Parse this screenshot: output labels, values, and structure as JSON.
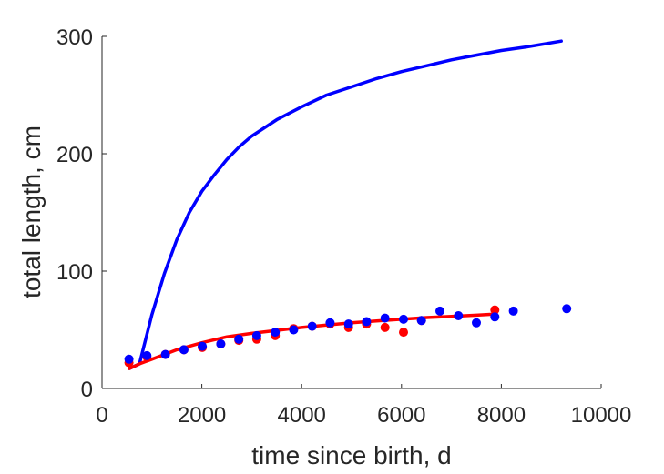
{
  "chart_data": {
    "type": "scatter",
    "title": "",
    "xlabel": "time since birth, d",
    "ylabel": "total length, cm",
    "xlim": [
      0,
      10000
    ],
    "ylim": [
      0,
      300
    ],
    "xticks": [
      0,
      2000,
      4000,
      6000,
      8000,
      10000
    ],
    "yticks": [
      0,
      100,
      200,
      300
    ],
    "grid": false,
    "colors": {
      "red": "#ff0000",
      "blue": "#0000ff",
      "axis": "#262626"
    },
    "series": [
      {
        "kind": "line",
        "color": "#0000ff",
        "x": [
          550,
          650,
          750,
          1000,
          1250,
          1500,
          1750,
          2000,
          2250,
          2500,
          2750,
          3000,
          3250,
          3500,
          4000,
          4500,
          5000,
          5500,
          6000,
          6500,
          7000,
          7500,
          8000,
          8500,
          9200
        ],
        "y": [
          17,
          19,
          21,
          63,
          98,
          127,
          150,
          168,
          182,
          195,
          206,
          215,
          222,
          229,
          240,
          250,
          257,
          264,
          270,
          275,
          280,
          284,
          288,
          291,
          296
        ]
      },
      {
        "kind": "line",
        "color": "#ff0000",
        "x": [
          550,
          750,
          1000,
          1250,
          1500,
          2000,
          2500,
          3000,
          3500,
          4000,
          4500,
          5000,
          5500,
          6000,
          6500,
          7000,
          7500,
          7900
        ],
        "y": [
          17,
          21,
          25,
          29,
          33,
          39,
          44,
          47,
          49.5,
          52,
          54,
          56,
          57.5,
          59,
          60.5,
          61.5,
          62.5,
          63.5
        ]
      },
      {
        "kind": "points",
        "color": "#ff0000",
        "x": [
          540,
          900,
          1270,
          1640,
          2010,
          2380,
          2740,
          3100,
          3470,
          3840,
          4210,
          4570,
          4940,
          5300,
          5670,
          6040,
          6400,
          7870
        ],
        "y": [
          22,
          27,
          29,
          33,
          35,
          38,
          41,
          42,
          45,
          51,
          53,
          55,
          52,
          55,
          52,
          48,
          58,
          67
        ]
      },
      {
        "kind": "points",
        "color": "#0000ff",
        "x": [
          540,
          900,
          1270,
          1640,
          2010,
          2380,
          2740,
          3100,
          3470,
          3840,
          4210,
          4570,
          4940,
          5300,
          5670,
          6040,
          6400,
          6770,
          7140,
          7500,
          7870,
          8240,
          9310
        ],
        "y": [
          25,
          28,
          29,
          33,
          36,
          38,
          42,
          45,
          48,
          50,
          53,
          56,
          55,
          57,
          60,
          59,
          58,
          66,
          62,
          56,
          61,
          66,
          68
        ]
      }
    ]
  }
}
